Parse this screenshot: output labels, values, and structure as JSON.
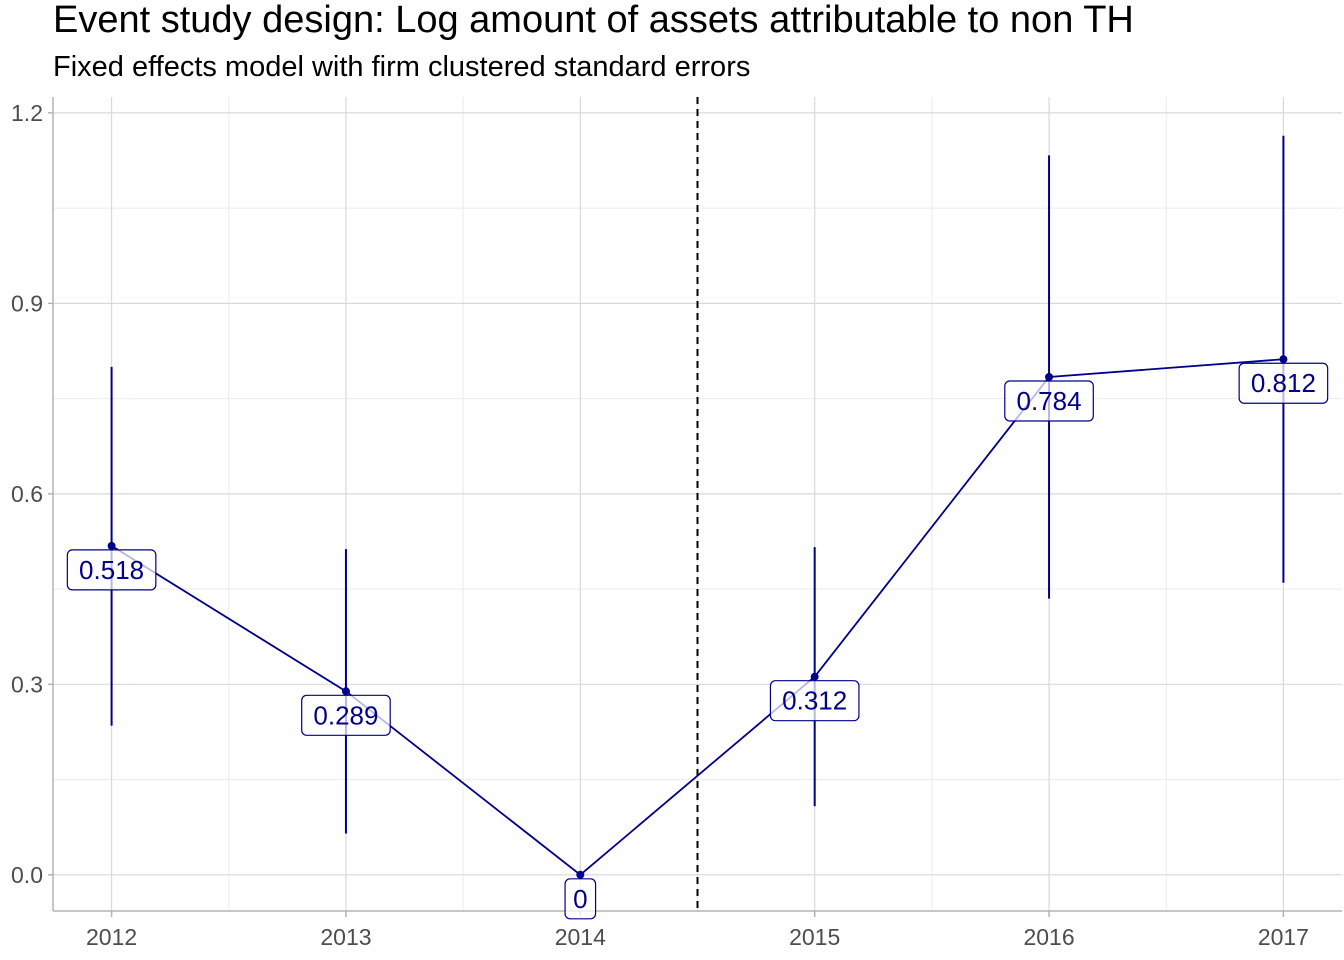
{
  "chart_data": {
    "type": "line",
    "title": "Event study design: Log amount of assets attributable to non TH",
    "subtitle": "Fixed effects model with firm clustered standard errors",
    "xlabel": "",
    "ylabel": "",
    "x": [
      2012,
      2013,
      2014,
      2015,
      2016,
      2017
    ],
    "x_tick_labels": [
      "2012",
      "2013",
      "2014",
      "2015",
      "2016",
      "2017"
    ],
    "y_tick_labels": [
      "0.0",
      "0.3",
      "0.6",
      "0.9",
      "1.2"
    ],
    "y_ticks": [
      0.0,
      0.3,
      0.6,
      0.9,
      1.2
    ],
    "ylim": [
      -0.057,
      1.225
    ],
    "xlim": [
      2011.75,
      2017.25
    ],
    "grid": true,
    "series": [
      {
        "values": [
          0.518,
          0.289,
          0,
          0.312,
          0.784,
          0.812
        ],
        "ci_low": [
          0.235,
          0.065,
          0,
          0.108,
          0.435,
          0.46
        ],
        "ci_high": [
          0.8,
          0.513,
          0,
          0.516,
          1.133,
          1.164
        ],
        "data_labels": [
          "0.518",
          "0.289",
          "0",
          "0.312",
          "0.784",
          "0.812"
        ]
      }
    ],
    "vline_x": 2014.5,
    "colors": {
      "series": "#00008B",
      "vline": "#000000",
      "grid": "#d9d9d9",
      "axis": "#b3b3b3"
    }
  }
}
